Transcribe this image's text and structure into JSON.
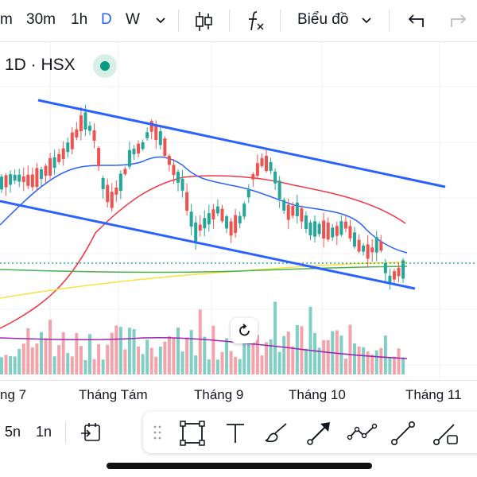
{
  "toolbar": {
    "timeframes": [
      "m",
      "30m",
      "1h",
      "D",
      "W"
    ],
    "active_timeframe": "D",
    "chart_type_label": "Biểu đồ"
  },
  "symbol": {
    "label": "1D · HSX"
  },
  "x_axis": {
    "labels": [
      "ng 7",
      "Tháng Tám",
      "Tháng 9",
      "Tháng 10",
      "Tháng 11"
    ]
  },
  "bottom": {
    "range_5n": "5n",
    "range_1n": "1n"
  },
  "colors": {
    "up": "#26a69a",
    "down": "#ef5350",
    "volume_up": "#7fcfc4",
    "volume_down": "#f4a3ab",
    "channel": "#2962ff",
    "ma_fast": "#2962ff",
    "ma_mid": "#f23645",
    "ma_slow": "#f7e33c",
    "ma_long": "#4caf50",
    "volume_ma": "#9c27b0",
    "dotted_price": "#089981"
  },
  "icons": [
    "chevron-down-icon",
    "candles-icon",
    "indicator-fx-icon",
    "undo-icon",
    "redo-icon",
    "compare-calendar-icon",
    "grip-icon",
    "rectangle-tool-icon",
    "text-tool-icon",
    "brush-tool-icon",
    "arrow-tool-icon",
    "path-tool-icon",
    "trend-line-icon",
    "ray-tool-icon",
    "reset-chart-icon"
  ]
}
